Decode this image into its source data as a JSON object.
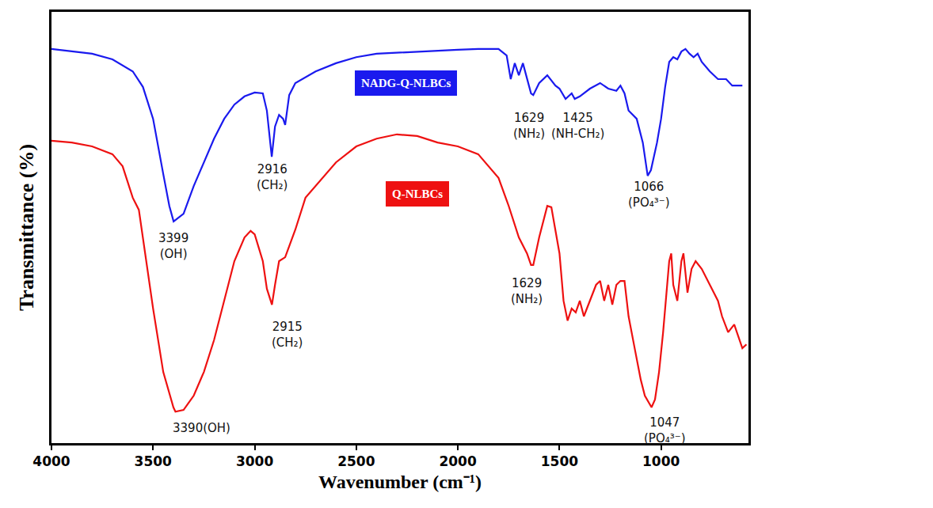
{
  "chart_data": {
    "type": "line",
    "x_label": "Wavenumber (cm⁻¹)",
    "y_label": "Transmittance (%)",
    "xlim": [
      4000,
      570
    ],
    "xticks": [
      4000,
      3500,
      3000,
      2500,
      2000,
      1500,
      1000
    ],
    "ylim": [
      0,
      100
    ],
    "yticks": [],
    "tick_labels": "x",
    "grid": false,
    "series": [
      {
        "name": "NADG-Q-NLBCs",
        "color": "#1a1aee",
        "x": [
          4000,
          3800,
          3700,
          3600,
          3550,
          3500,
          3450,
          3420,
          3399,
          3350,
          3300,
          3250,
          3200,
          3150,
          3100,
          3050,
          3000,
          2960,
          2940,
          2916,
          2900,
          2880,
          2860,
          2850,
          2830,
          2800,
          2700,
          2600,
          2500,
          2400,
          2200,
          2000,
          1900,
          1800,
          1760,
          1740,
          1720,
          1700,
          1680,
          1660,
          1640,
          1629,
          1600,
          1560,
          1520,
          1500,
          1470,
          1440,
          1425,
          1400,
          1380,
          1350,
          1300,
          1260,
          1220,
          1200,
          1180,
          1160,
          1120,
          1090,
          1066,
          1050,
          1020,
          1000,
          980,
          960,
          940,
          920,
          900,
          880,
          860,
          840,
          820,
          800,
          760,
          720,
          680,
          650,
          600
        ],
        "values": [
          91.4,
          90.3,
          89.0,
          86.2,
          82.6,
          75.2,
          62.4,
          55.0,
          51.4,
          53.2,
          59.6,
          65.1,
          70.6,
          75.2,
          78.5,
          80.4,
          81.3,
          81.1,
          77.1,
          66.4,
          73.4,
          76.1,
          75.2,
          73.8,
          80.7,
          83.5,
          86.2,
          88.1,
          89.5,
          90.3,
          90.8,
          91.2,
          91.4,
          91.4,
          89.9,
          84.4,
          88.1,
          85.3,
          88.1,
          84.4,
          81.1,
          80.7,
          83.5,
          85.3,
          82.9,
          82.2,
          79.8,
          81.1,
          79.8,
          80.4,
          81.1,
          82.2,
          83.5,
          82.2,
          81.7,
          82.9,
          81.1,
          77.1,
          75.2,
          69.7,
          62.0,
          63.3,
          69.7,
          75.2,
          82.6,
          88.4,
          89.5,
          89.0,
          90.8,
          91.4,
          90.3,
          89.5,
          90.3,
          88.4,
          86.2,
          84.4,
          84.4,
          82.9,
          82.9
        ]
      },
      {
        "name": "Q-NLBCs",
        "color": "#ee1111",
        "x": [
          4000,
          3900,
          3800,
          3700,
          3650,
          3600,
          3570,
          3540,
          3500,
          3450,
          3400,
          3390,
          3350,
          3300,
          3250,
          3200,
          3150,
          3100,
          3050,
          3020,
          3000,
          2960,
          2940,
          2915,
          2900,
          2880,
          2850,
          2800,
          2750,
          2700,
          2600,
          2500,
          2400,
          2300,
          2200,
          2100,
          2000,
          1900,
          1800,
          1750,
          1700,
          1660,
          1640,
          1629,
          1600,
          1560,
          1540,
          1500,
          1480,
          1460,
          1440,
          1420,
          1400,
          1380,
          1350,
          1320,
          1300,
          1280,
          1260,
          1240,
          1220,
          1200,
          1180,
          1160,
          1130,
          1100,
          1080,
          1060,
          1047,
          1030,
          1010,
          990,
          970,
          960,
          950,
          940,
          920,
          900,
          890,
          870,
          850,
          830,
          800,
          760,
          720,
          700,
          670,
          640,
          600,
          580
        ],
        "values": [
          70.1,
          69.7,
          68.8,
          67.0,
          64.2,
          56.9,
          54.1,
          44.0,
          31.2,
          16.5,
          8.3,
          7.3,
          7.7,
          11.0,
          16.5,
          23.9,
          33.0,
          42.2,
          47.7,
          49.2,
          48.4,
          42.2,
          35.8,
          32.1,
          36.7,
          42.2,
          43.1,
          49.5,
          56.9,
          59.6,
          65.1,
          68.8,
          70.6,
          71.6,
          71.2,
          69.7,
          68.8,
          67.0,
          61.5,
          55.0,
          47.7,
          44.0,
          41.3,
          41.3,
          47.7,
          55.0,
          54.7,
          44.0,
          33.0,
          28.4,
          31.2,
          30.3,
          33.0,
          29.4,
          33.0,
          36.7,
          37.6,
          33.0,
          36.7,
          32.1,
          36.7,
          37.6,
          37.6,
          29.4,
          22.0,
          14.7,
          11.0,
          9.2,
          8.3,
          10.1,
          16.5,
          25.7,
          36.7,
          42.2,
          44.0,
          36.7,
          33.0,
          42.2,
          44.0,
          34.9,
          40.4,
          42.2,
          40.4,
          36.7,
          33.0,
          29.4,
          25.7,
          27.5,
          22.0,
          22.9
        ]
      }
    ],
    "annotations": [
      {
        "x": 3399,
        "y": 49.5,
        "text": [
          "3399",
          "(OH)"
        ]
      },
      {
        "x": 2916,
        "y": 65.5,
        "text": [
          "2916",
          "(CH₂)"
        ]
      },
      {
        "x": 1650,
        "y": 77.5,
        "text": [
          "1629",
          "(NH₂)"
        ]
      },
      {
        "x": 1410,
        "y": 77.5,
        "text": [
          "1425",
          "(NH-CH₂)"
        ]
      },
      {
        "x": 1058,
        "y": 61.5,
        "text": [
          "1066",
          "(PO₄³⁻)"
        ]
      },
      {
        "x": 3260,
        "y": 5.5,
        "text": [
          "3390(OH)"
        ]
      },
      {
        "x": 2840,
        "y": 29.0,
        "text": [
          "2915",
          "(CH₂)"
        ]
      },
      {
        "x": 1662,
        "y": 39.0,
        "text": [
          "1629",
          "(NH₂)"
        ]
      },
      {
        "x": 980,
        "y": 6.8,
        "text": [
          "1047",
          "(PO₄³⁻)"
        ]
      }
    ]
  }
}
